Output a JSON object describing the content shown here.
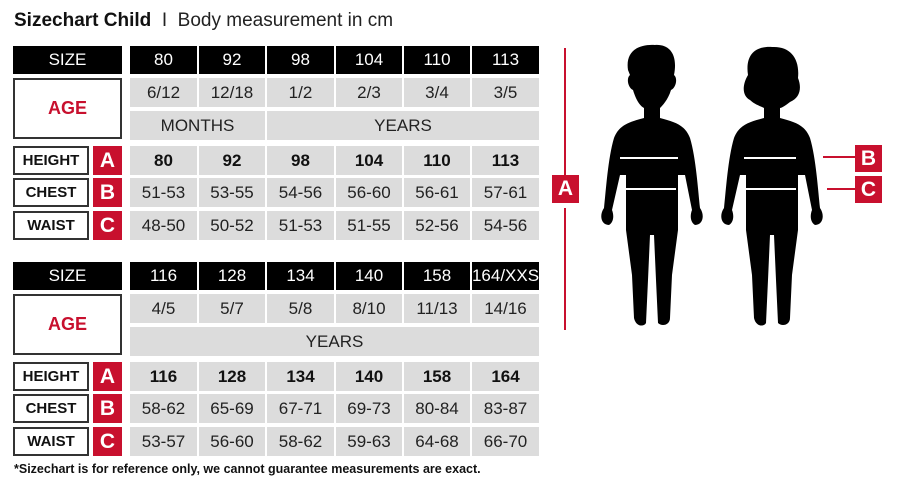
{
  "title": {
    "main": "Sizechart Child",
    "separator": "I",
    "sub": "Body measurement in cm"
  },
  "labels": {
    "size": "SIZE",
    "age": "AGE",
    "height": "HEIGHT",
    "chest": "CHEST",
    "waist": "WAIST",
    "a": "A",
    "b": "B",
    "c": "C"
  },
  "tables": [
    {
      "sizes": [
        "80",
        "92",
        "98",
        "104",
        "110",
        "113"
      ],
      "ages": [
        "6/12",
        "12/18",
        "1/2",
        "2/3",
        "3/4",
        "3/5"
      ],
      "age_units": [
        {
          "label": "MONTHS",
          "span": 2
        },
        {
          "label": "YEARS",
          "span": 4
        }
      ],
      "height": [
        "80",
        "92",
        "98",
        "104",
        "110",
        "113"
      ],
      "chest": [
        "51-53",
        "53-55",
        "54-56",
        "56-60",
        "56-61",
        "57-61"
      ],
      "waist": [
        "48-50",
        "50-52",
        "51-53",
        "51-55",
        "52-56",
        "54-56"
      ]
    },
    {
      "sizes": [
        "116",
        "128",
        "134",
        "140",
        "158",
        "164/XXS"
      ],
      "ages": [
        "4/5",
        "5/7",
        "5/8",
        "8/10",
        "11/13",
        "14/16"
      ],
      "age_units": [
        {
          "label": "YEARS",
          "span": 6
        }
      ],
      "height": [
        "116",
        "128",
        "134",
        "140",
        "158",
        "164"
      ],
      "chest": [
        "58-62",
        "65-69",
        "67-71",
        "69-73",
        "80-84",
        "83-87"
      ],
      "waist": [
        "53-57",
        "56-60",
        "58-62",
        "59-63",
        "64-68",
        "66-70"
      ]
    }
  ],
  "footnote": "*Sizechart is for reference only, we cannot guarantee measurements are exact.",
  "colors": {
    "accent": "#c8102e",
    "header": "#000000",
    "cell": "#dcdcdc"
  }
}
